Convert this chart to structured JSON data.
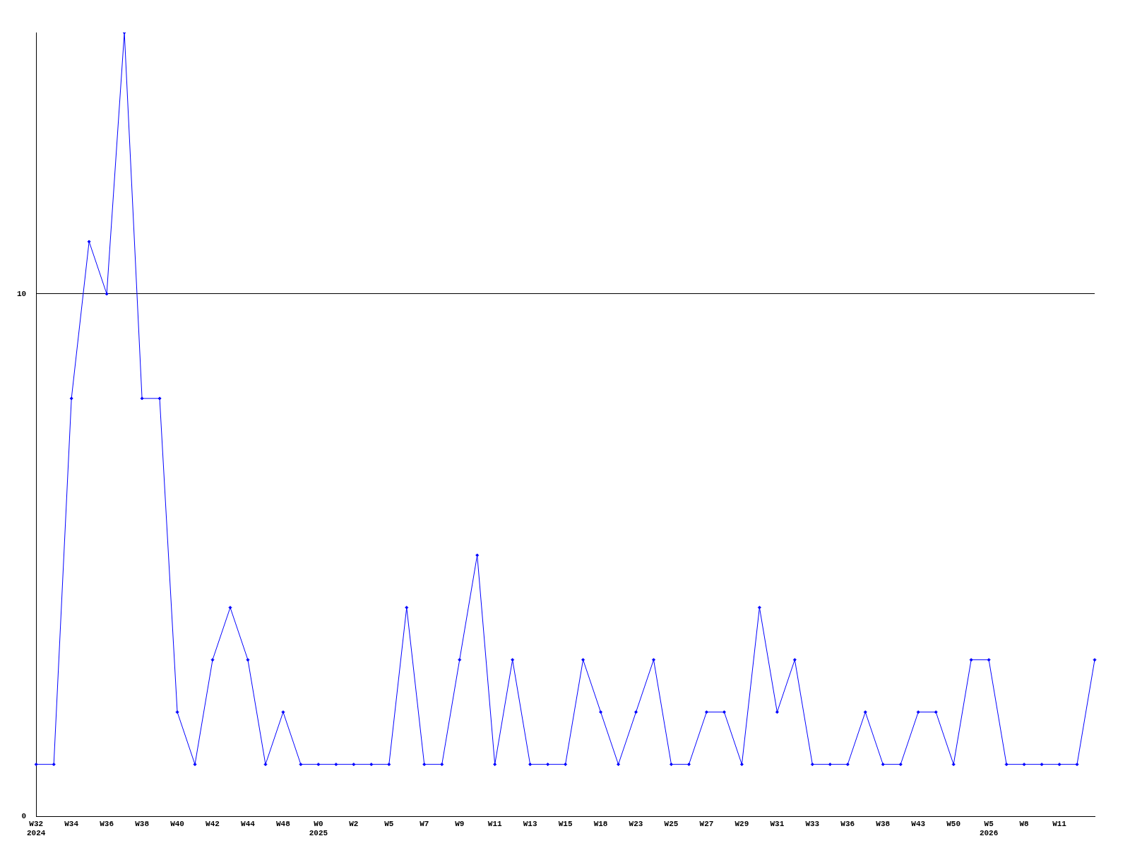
{
  "chart_data": {
    "type": "line",
    "categories": [
      "W32\n2024",
      null,
      "W34",
      null,
      "W36",
      null,
      "W38",
      null,
      "W40",
      null,
      "W42",
      null,
      "W44",
      null,
      "W48",
      null,
      "W0\n2025",
      null,
      "W2",
      null,
      "W5",
      null,
      "W7",
      null,
      "W9",
      null,
      "W11",
      null,
      "W13",
      null,
      "W15",
      null,
      "W18",
      null,
      "W23",
      null,
      "W25",
      null,
      "W27",
      null,
      "W29",
      null,
      "W31",
      null,
      "W33",
      null,
      "W36",
      null,
      "W38",
      null,
      "W43",
      null,
      "W50",
      null,
      "W5\n2026",
      null,
      "W8",
      null,
      "W11",
      null,
      null
    ],
    "series": [
      {
        "color": "#0000ff",
        "values": [
          1,
          1,
          8,
          11,
          10,
          15,
          8,
          8,
          2,
          1,
          3,
          4,
          3,
          1,
          2,
          1,
          1,
          1,
          1,
          1,
          1,
          4,
          1,
          1,
          3,
          5,
          1,
          3,
          1,
          1,
          1,
          3,
          2,
          1,
          2,
          3,
          1,
          1,
          2,
          2,
          1,
          4,
          2,
          3,
          1,
          1,
          1,
          2,
          1,
          1,
          2,
          2,
          1,
          3,
          3,
          1,
          1,
          1,
          1,
          1,
          3
        ]
      }
    ],
    "ylim": [
      0,
      15
    ],
    "yticks": [
      0,
      10
    ],
    "grid": "y",
    "legend": false,
    "marker": "diamond",
    "line_style": "solid"
  }
}
